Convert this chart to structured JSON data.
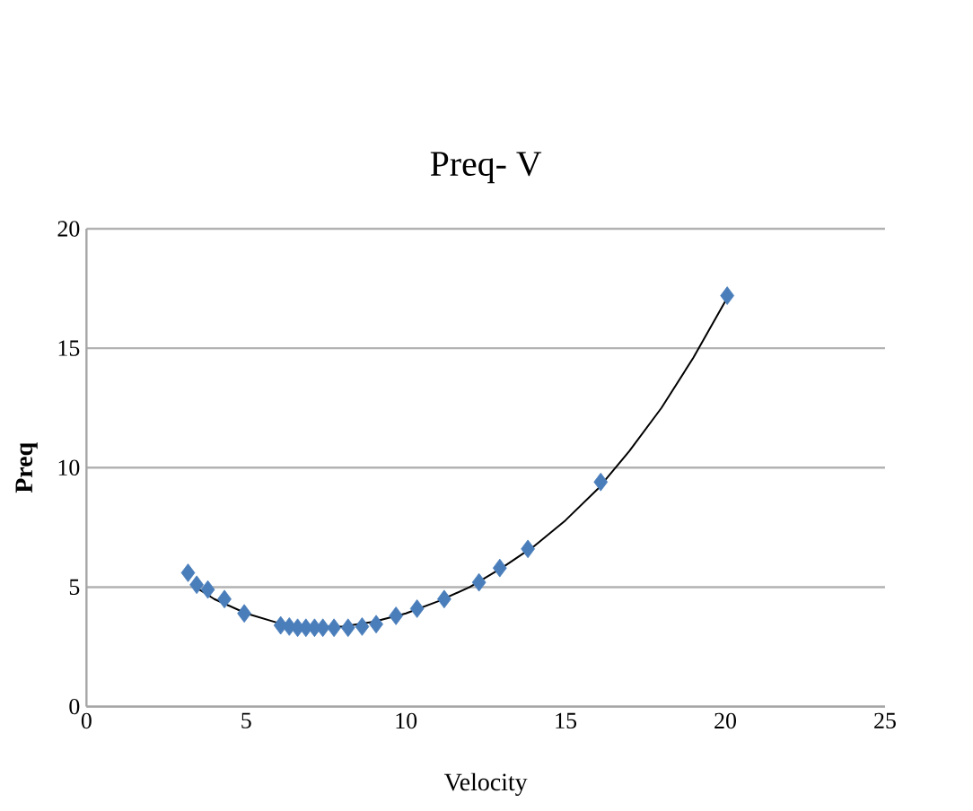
{
  "chart_data": {
    "type": "scatter",
    "title": "Preq- V",
    "xlabel": "Velocity",
    "ylabel": "Preq",
    "xlim": [
      0,
      25
    ],
    "ylim": [
      0,
      20
    ],
    "xticks": [
      0,
      5,
      10,
      15,
      20,
      25
    ],
    "yticks": [
      0,
      5,
      10,
      15,
      20
    ],
    "grid": "y",
    "marker": "diamond",
    "series": [
      {
        "color": "#4a7ebb",
        "x": [
          3.18,
          3.45,
          3.8,
          4.32,
          4.94,
          6.08,
          6.35,
          6.61,
          6.87,
          7.14,
          7.4,
          7.75,
          8.19,
          8.63,
          9.07,
          9.69,
          10.35,
          11.2,
          12.29,
          12.94,
          13.82,
          16.1,
          20.06
        ],
        "values": [
          5.6,
          5.1,
          4.9,
          4.5,
          3.9,
          3.4,
          3.35,
          3.3,
          3.3,
          3.3,
          3.3,
          3.3,
          3.3,
          3.35,
          3.45,
          3.8,
          4.1,
          4.5,
          5.2,
          5.8,
          6.6,
          9.4,
          17.2
        ]
      },
      {
        "type": "line",
        "color": "#000000",
        "marker": "none",
        "x": [
          3.3,
          4,
          5,
          6,
          7,
          8,
          9,
          10,
          11,
          12,
          13,
          14,
          15,
          16,
          17,
          18,
          19,
          20.1
        ],
        "values": [
          5.1,
          4.5,
          3.9,
          3.5,
          3.35,
          3.35,
          3.55,
          3.9,
          4.4,
          5.0,
          5.8,
          6.7,
          7.8,
          9.1,
          10.7,
          12.5,
          14.6,
          17.2
        ]
      }
    ]
  }
}
